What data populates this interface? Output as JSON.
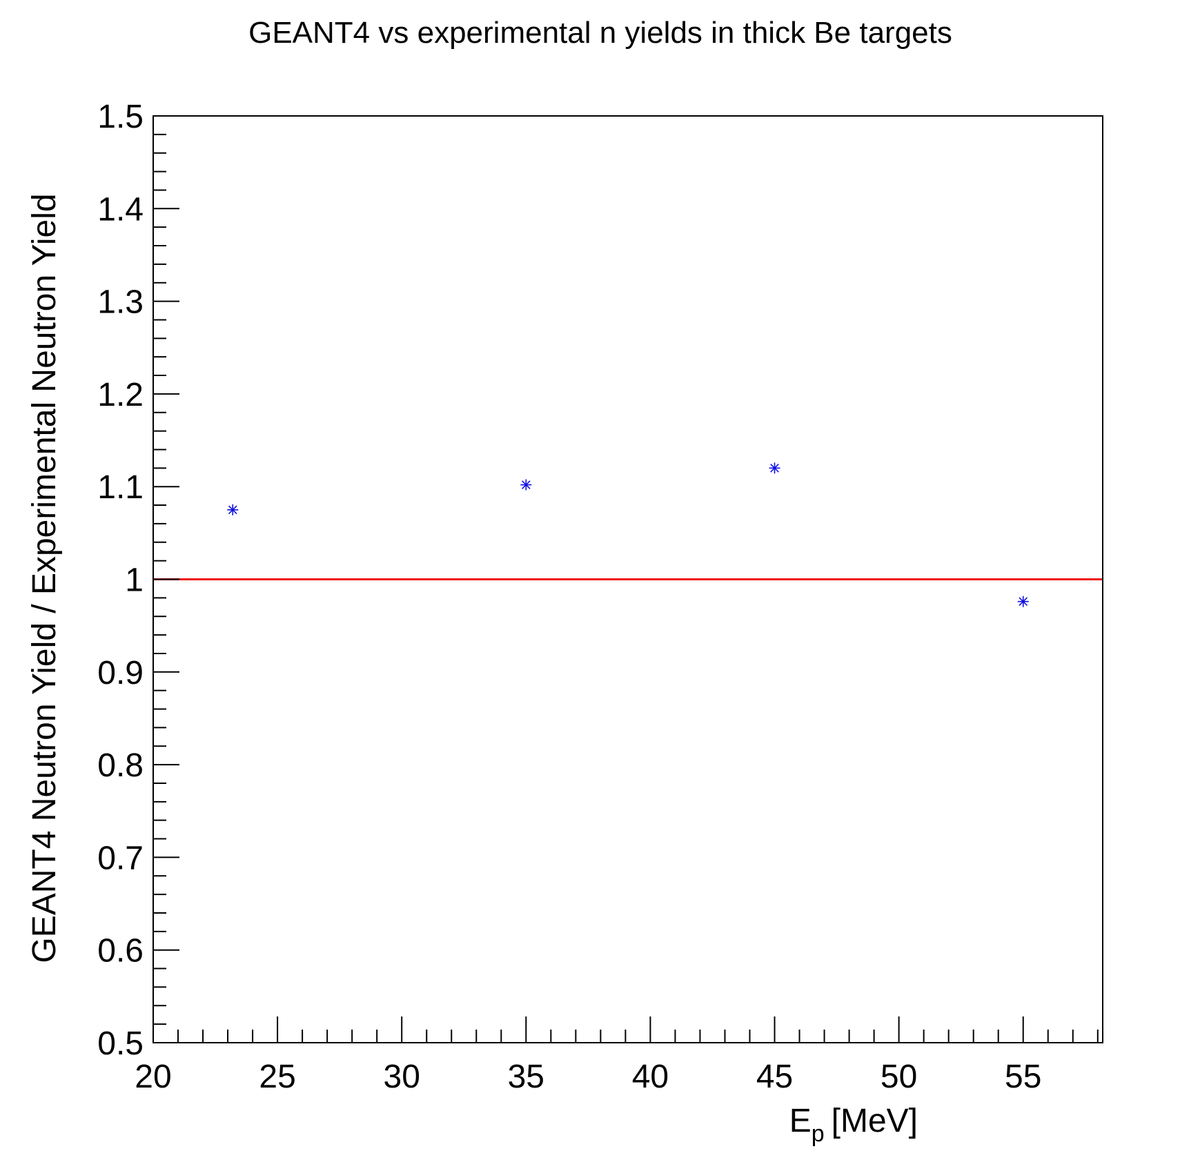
{
  "chart_data": {
    "type": "scatter",
    "title": "GEANT4 vs experimental n yields in thick Be targets",
    "xlabel": {
      "main": "E",
      "sub": "p",
      "unit": "[MeV]"
    },
    "ylabel": "GEANT4 Neutron Yield / Experimental Neutron Yield",
    "xlim": [
      20,
      58.2
    ],
    "ylim": [
      0.5,
      1.5
    ],
    "x_ticks": [
      "20",
      "25",
      "30",
      "35",
      "40",
      "45",
      "50",
      "55"
    ],
    "y_ticks": [
      "0.5",
      "0.6",
      "0.7",
      "0.8",
      "0.9",
      "1",
      "1.1",
      "1.2",
      "1.3",
      "1.4",
      "1.5"
    ],
    "series": [
      {
        "marker": "asterisk",
        "color": "#1010e0",
        "points": [
          {
            "x": 23.2,
            "y": 1.075
          },
          {
            "x": 35.0,
            "y": 1.102
          },
          {
            "x": 45.0,
            "y": 1.12
          },
          {
            "x": 55.0,
            "y": 0.976
          }
        ]
      }
    ],
    "reference_line": {
      "y": 1.0,
      "color": "#ee1111"
    },
    "grid": false,
    "legend": "none"
  }
}
